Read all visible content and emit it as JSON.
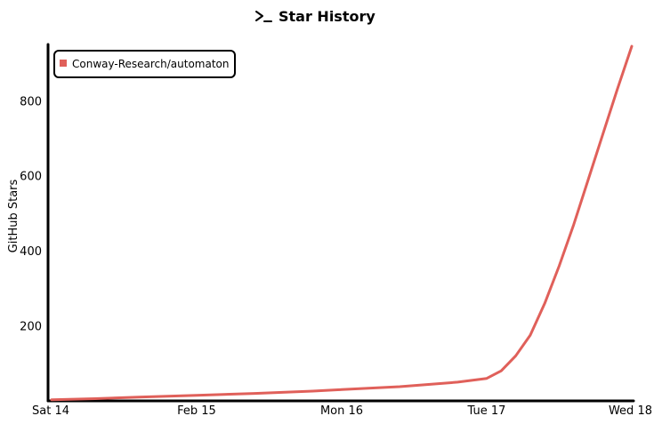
{
  "chart_data": {
    "type": "line",
    "title": "Star History",
    "title_icon": "terminal-prompt-icon",
    "xlabel": "",
    "ylabel": "GitHub Stars",
    "x_tick_labels": [
      "Sat 14",
      "Feb 15",
      "Mon 16",
      "Tue 17",
      "Wed 18"
    ],
    "x_tick_positions": [
      0,
      1,
      2,
      3,
      4
    ],
    "xlim": [
      0,
      4
    ],
    "y_ticks": [
      200,
      400,
      600,
      800
    ],
    "ylim": [
      0,
      950
    ],
    "grid": false,
    "legend_position": "top-left",
    "series": [
      {
        "name": "Conway-Research/automaton",
        "color": "#e0605a",
        "x": [
          0,
          0.3,
          0.6,
          1.0,
          1.4,
          1.8,
          2.0,
          2.4,
          2.8,
          3.0,
          3.1,
          3.2,
          3.3,
          3.4,
          3.5,
          3.6,
          3.7,
          3.8,
          3.9,
          4.0
        ],
        "y": [
          3,
          6,
          10,
          15,
          20,
          26,
          30,
          38,
          50,
          60,
          80,
          120,
          175,
          260,
          360,
          470,
          590,
          710,
          830,
          945
        ]
      }
    ]
  }
}
